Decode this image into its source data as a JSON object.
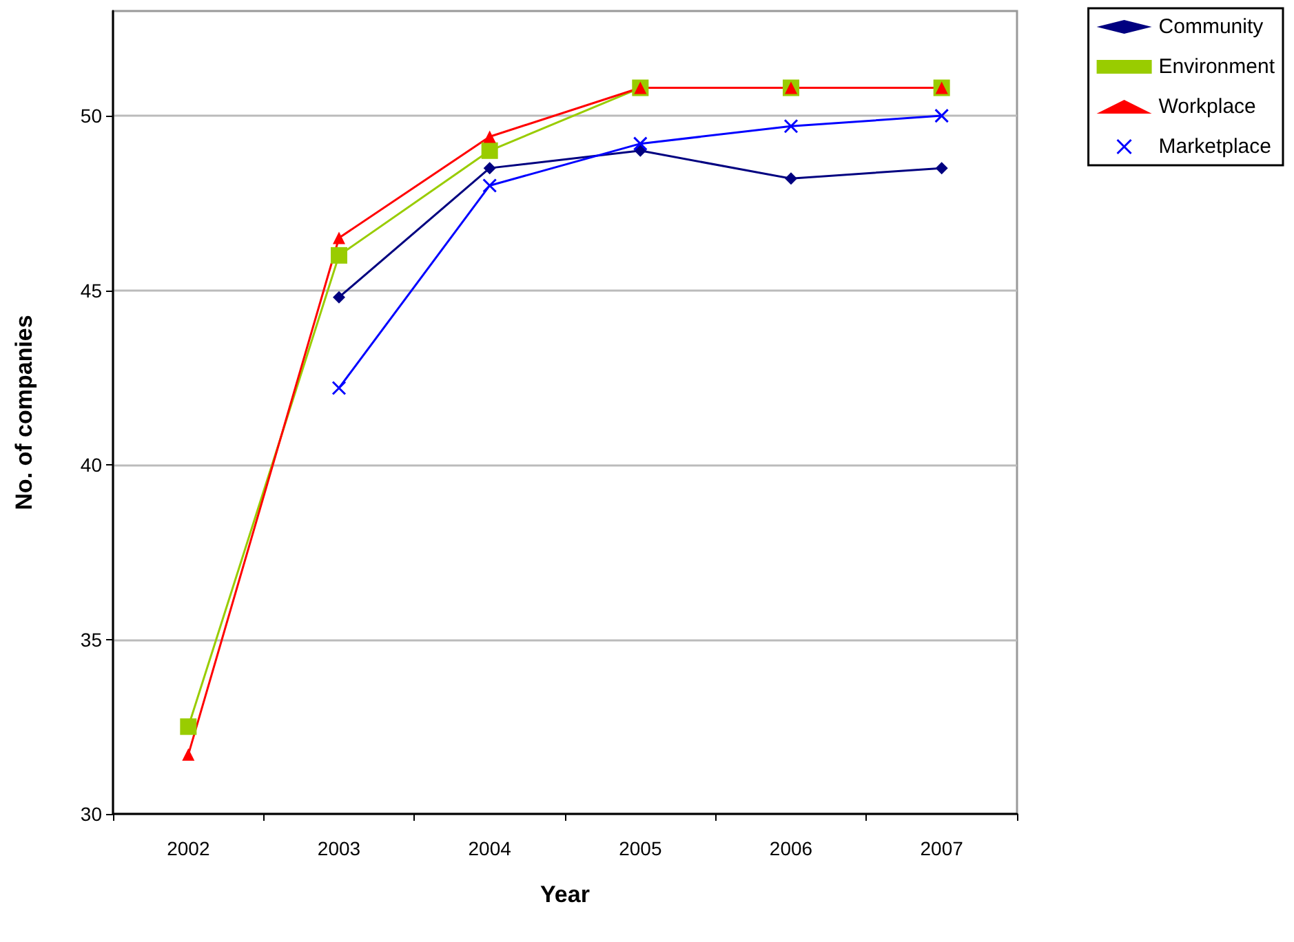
{
  "chart_data": {
    "type": "line",
    "xlabel": "Year",
    "ylabel": "No. of companies",
    "categories": [
      "2002",
      "2003",
      "2004",
      "2005",
      "2006",
      "2007"
    ],
    "series": [
      {
        "name": "Community",
        "color": "#000080",
        "marker": "diamond",
        "values": [
          null,
          44.8,
          48.5,
          49.0,
          48.2,
          48.5
        ]
      },
      {
        "name": "Environment",
        "color": "#99cc00",
        "marker": "square",
        "values": [
          32.5,
          46.0,
          49.0,
          50.8,
          50.8,
          50.8
        ]
      },
      {
        "name": "Workplace",
        "color": "#ff0000",
        "marker": "triangle",
        "values": [
          31.7,
          46.5,
          49.4,
          50.8,
          50.8,
          50.8
        ]
      },
      {
        "name": "Marketplace",
        "color": "#0000ff",
        "marker": "cross",
        "values": [
          null,
          42.2,
          48.0,
          49.2,
          49.7,
          50.0
        ]
      }
    ],
    "ylim": [
      30,
      53
    ],
    "yticks": [
      30,
      35,
      40,
      45,
      50
    ],
    "grid": "y",
    "legend": "top right",
    "line_style": "solid"
  }
}
